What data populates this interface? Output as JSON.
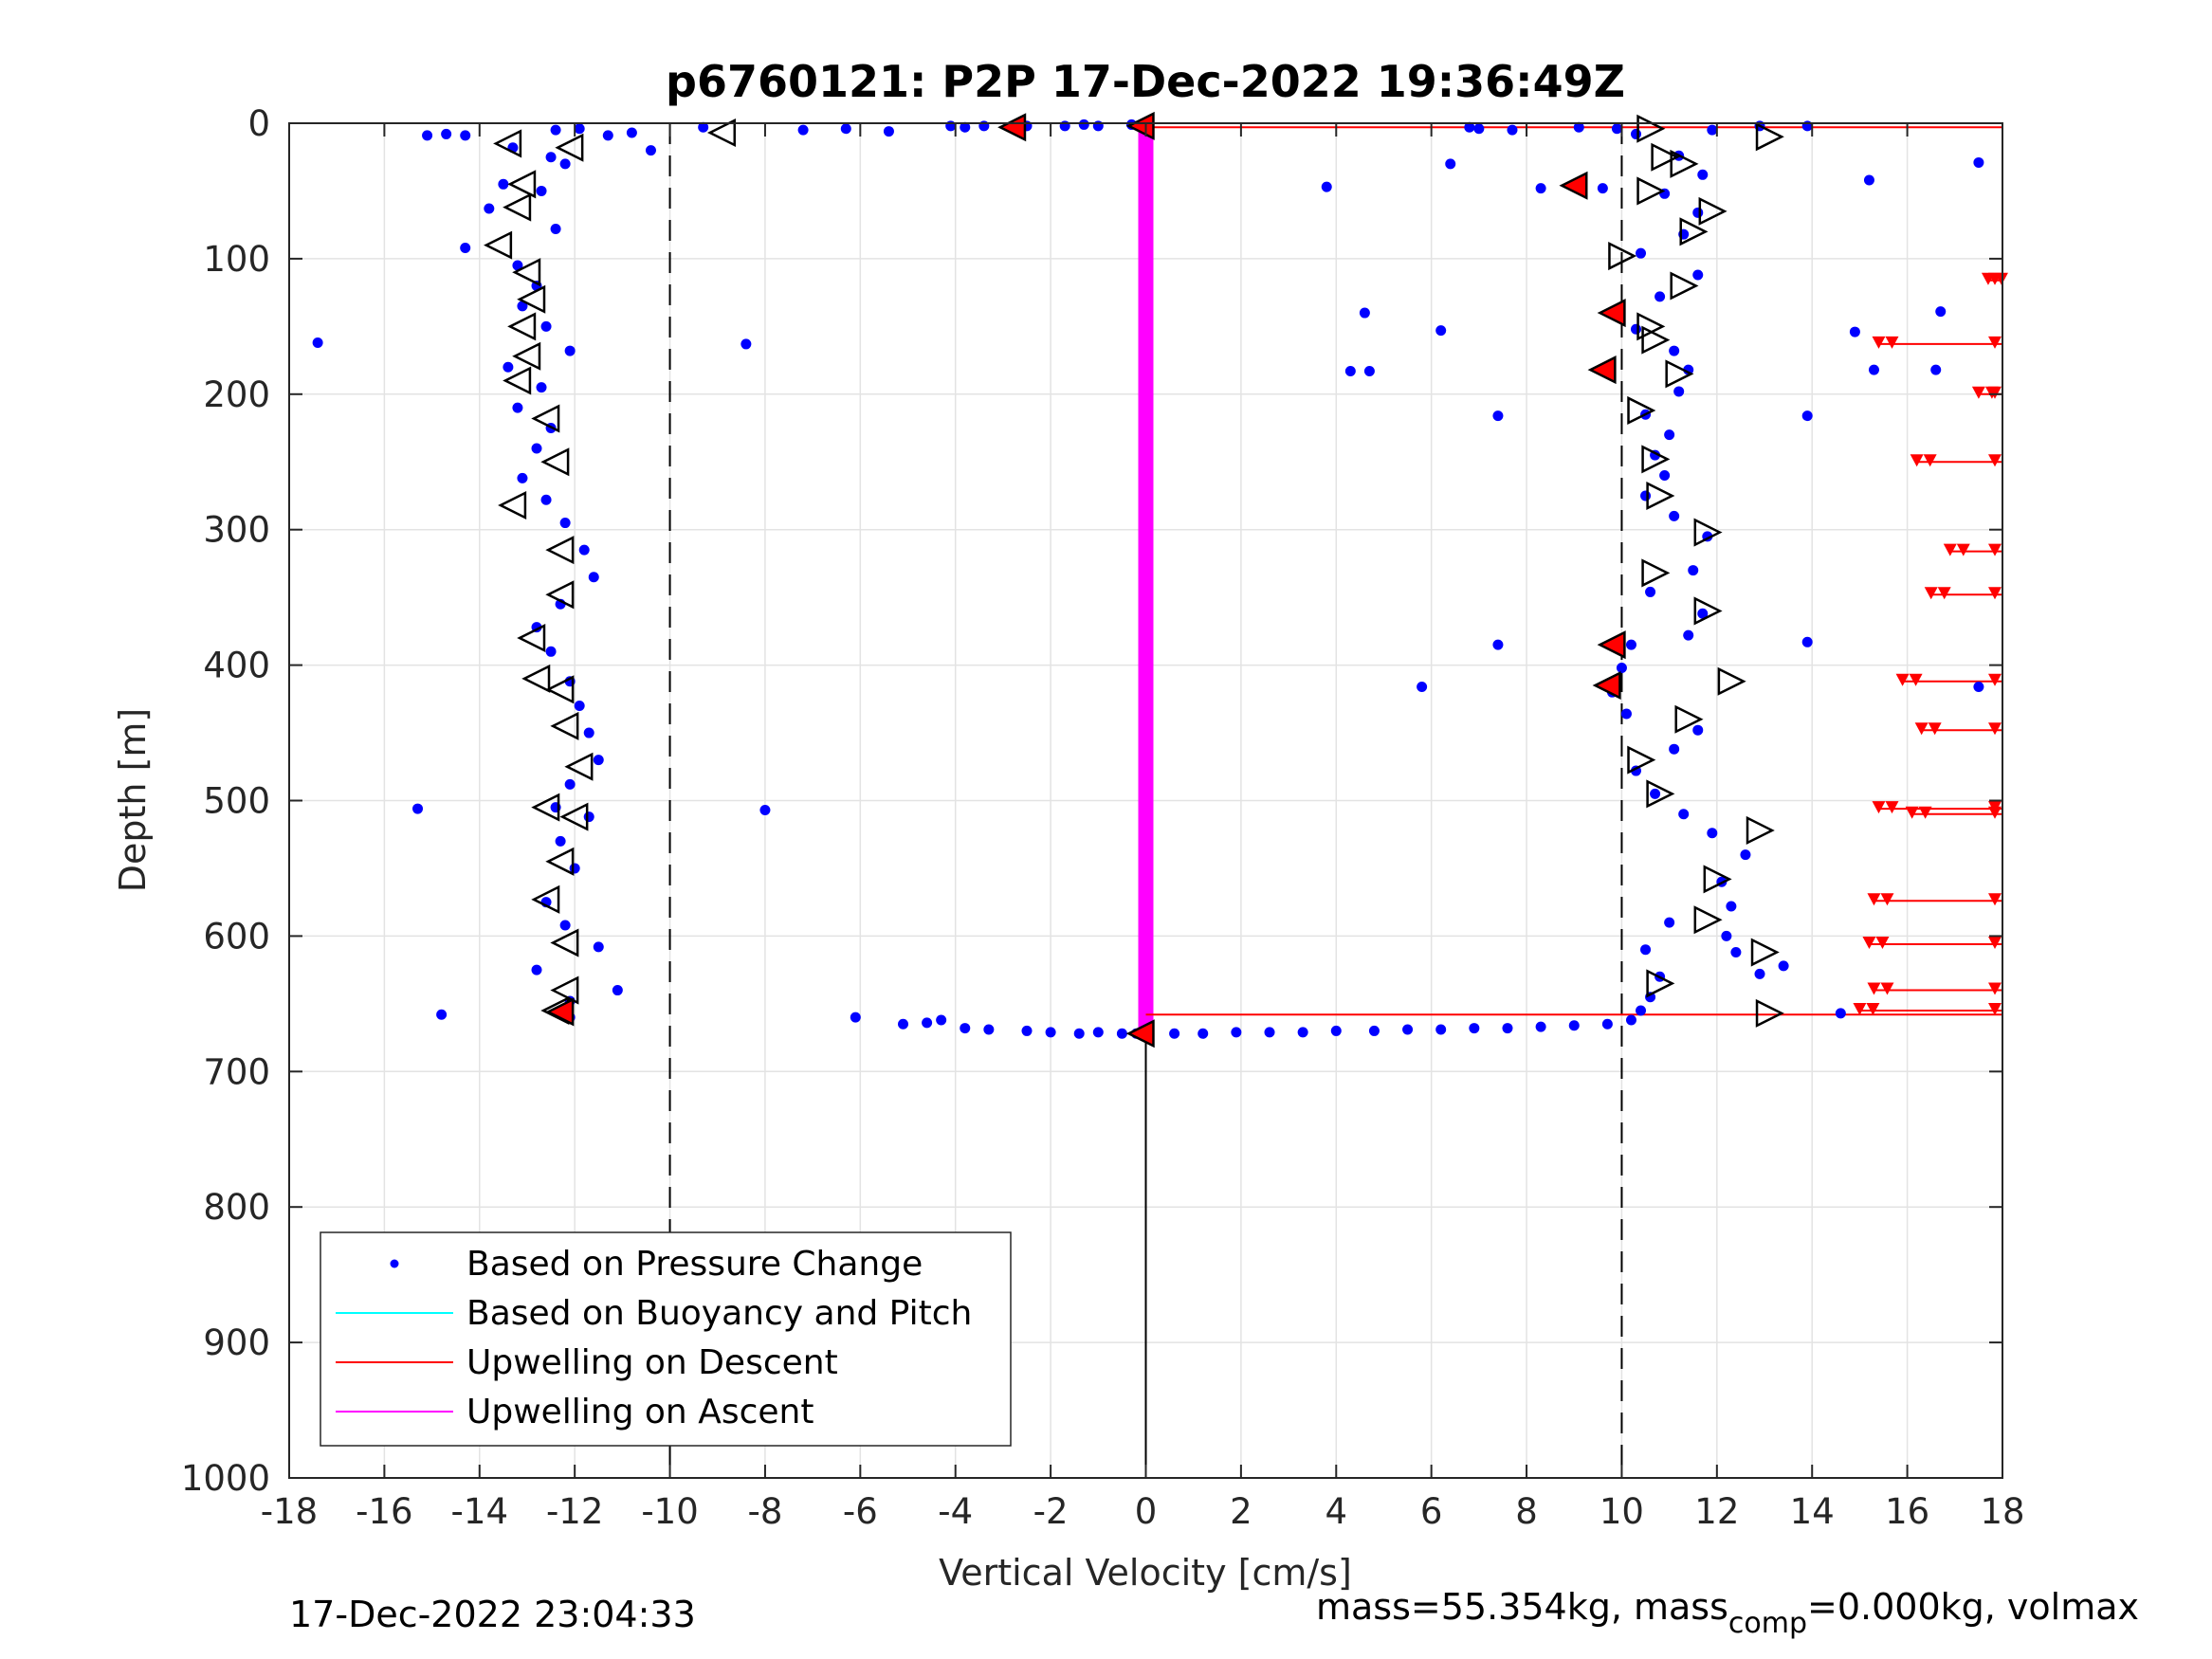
{
  "chart_data": {
    "type": "scatter",
    "title": "p6760121: P2P 17-Dec-2022 19:36:49Z",
    "xlabel": "Vertical Velocity [cm/s]",
    "ylabel": "Depth [m]",
    "xlim": [
      -18,
      18
    ],
    "ylim": [
      0,
      1000
    ],
    "y_reversed": true,
    "grid": true,
    "x_ticks": [
      "-18",
      "-16",
      "-14",
      "-12",
      "-10",
      "-8",
      "-6",
      "-4",
      "-2",
      "0",
      "2",
      "4",
      "6",
      "8",
      "10",
      "12",
      "14",
      "16",
      "18"
    ],
    "y_ticks": [
      "0",
      "100",
      "200",
      "300",
      "400",
      "500",
      "600",
      "700",
      "800",
      "900",
      "1000"
    ],
    "legend_position": "bottom-left",
    "legend": [
      {
        "label": "Based on Pressure Change",
        "color": "#0000ff",
        "marker": "dot"
      },
      {
        "label": "Based on Buoyancy and Pitch",
        "color": "#00ffff",
        "marker": "line"
      },
      {
        "label": "Upwelling on Descent",
        "color": "#ff0000",
        "marker": "line"
      },
      {
        "label": "Upwelling on Ascent",
        "color": "#ff00ff",
        "marker": "line"
      }
    ],
    "reference_lines": {
      "dashed_x": [
        -10,
        10
      ],
      "solid_x": 0,
      "solid_x_from_depth": 670
    },
    "series": [
      {
        "role": "pressure_change_descent",
        "color": "#0000ff",
        "points": [
          [
            -15.1,
            9
          ],
          [
            -14.7,
            8
          ],
          [
            -14.3,
            9
          ],
          [
            -12.4,
            5
          ],
          [
            -11.9,
            4
          ],
          [
            -11.3,
            9
          ],
          [
            -10.8,
            7
          ],
          [
            -10.4,
            20
          ],
          [
            -9.3,
            3
          ],
          [
            -7.2,
            5
          ],
          [
            -6.3,
            4
          ],
          [
            -5.4,
            6
          ],
          [
            -4.1,
            2
          ],
          [
            -3.8,
            3
          ],
          [
            -3.4,
            2
          ],
          [
            -2.5,
            2
          ],
          [
            -1.7,
            2
          ],
          [
            -1.3,
            1
          ],
          [
            -1.0,
            2
          ],
          [
            -0.3,
            1
          ],
          [
            -13.3,
            18
          ],
          [
            -12.5,
            25
          ],
          [
            -12.2,
            30
          ],
          [
            -13.5,
            45
          ],
          [
            -12.7,
            50
          ],
          [
            -13.8,
            63
          ],
          [
            -12.4,
            78
          ],
          [
            -14.3,
            92
          ],
          [
            -13.2,
            105
          ],
          [
            -12.8,
            120
          ],
          [
            -13.1,
            135
          ],
          [
            -12.6,
            150
          ],
          [
            -12.1,
            168
          ],
          [
            -13.4,
            180
          ],
          [
            -12.7,
            195
          ],
          [
            -13.2,
            210
          ],
          [
            -12.5,
            225
          ],
          [
            -12.8,
            240
          ],
          [
            -13.1,
            262
          ],
          [
            -12.6,
            278
          ],
          [
            -12.2,
            295
          ],
          [
            -11.8,
            315
          ],
          [
            -11.6,
            335
          ],
          [
            -12.3,
            355
          ],
          [
            -12.8,
            372
          ],
          [
            -12.5,
            390
          ],
          [
            -12.1,
            412
          ],
          [
            -11.9,
            430
          ],
          [
            -11.7,
            450
          ],
          [
            -11.5,
            470
          ],
          [
            -12.1,
            488
          ],
          [
            -12.4,
            505
          ],
          [
            -11.7,
            512
          ],
          [
            -12.3,
            530
          ],
          [
            -12.0,
            550
          ],
          [
            -12.6,
            575
          ],
          [
            -12.2,
            592
          ],
          [
            -11.5,
            608
          ],
          [
            -12.8,
            625
          ],
          [
            -11.1,
            640
          ],
          [
            -12.1,
            648
          ],
          [
            -14.8,
            658
          ],
          [
            -12.1,
            660
          ],
          [
            -17.4,
            162
          ],
          [
            -15.3,
            506
          ],
          [
            -8.4,
            163
          ],
          [
            -8.0,
            507
          ],
          [
            -6.1,
            660
          ],
          [
            -5.1,
            665
          ],
          [
            -4.6,
            664
          ],
          [
            -4.3,
            662
          ],
          [
            -3.8,
            668
          ],
          [
            -3.3,
            669
          ],
          [
            -2.5,
            670
          ],
          [
            -2.0,
            671
          ],
          [
            -1.4,
            672
          ],
          [
            -1.0,
            671
          ],
          [
            -0.5,
            672
          ],
          [
            -0.2,
            672
          ]
        ]
      },
      {
        "role": "pressure_change_ascent",
        "color": "#0000ff",
        "points": [
          [
            0.6,
            672
          ],
          [
            1.2,
            672
          ],
          [
            1.9,
            671
          ],
          [
            2.6,
            671
          ],
          [
            3.3,
            671
          ],
          [
            4.0,
            670
          ],
          [
            4.8,
            670
          ],
          [
            5.5,
            669
          ],
          [
            6.2,
            669
          ],
          [
            6.9,
            668
          ],
          [
            7.6,
            668
          ],
          [
            8.3,
            667
          ],
          [
            9.0,
            666
          ],
          [
            9.7,
            665
          ],
          [
            10.2,
            662
          ],
          [
            10.4,
            655
          ],
          [
            10.6,
            645
          ],
          [
            10.8,
            630
          ],
          [
            10.5,
            610
          ],
          [
            11.0,
            590
          ],
          [
            12.4,
            612
          ],
          [
            13.4,
            622
          ],
          [
            12.9,
            628
          ],
          [
            12.2,
            600
          ],
          [
            12.3,
            578
          ],
          [
            12.1,
            560
          ],
          [
            12.6,
            540
          ],
          [
            11.9,
            524
          ],
          [
            11.3,
            510
          ],
          [
            10.7,
            495
          ],
          [
            10.3,
            478
          ],
          [
            11.1,
            462
          ],
          [
            11.6,
            448
          ],
          [
            10.1,
            436
          ],
          [
            9.8,
            420
          ],
          [
            10.0,
            402
          ],
          [
            10.2,
            385
          ],
          [
            11.4,
            378
          ],
          [
            11.7,
            362
          ],
          [
            10.6,
            346
          ],
          [
            11.5,
            330
          ],
          [
            11.8,
            305
          ],
          [
            11.1,
            290
          ],
          [
            10.5,
            275
          ],
          [
            10.9,
            260
          ],
          [
            10.7,
            245
          ],
          [
            11.0,
            230
          ],
          [
            10.5,
            215
          ],
          [
            11.2,
            198
          ],
          [
            11.4,
            182
          ],
          [
            11.1,
            168
          ],
          [
            10.3,
            152
          ],
          [
            9.9,
            140
          ],
          [
            10.8,
            128
          ],
          [
            11.6,
            112
          ],
          [
            10.4,
            96
          ],
          [
            11.3,
            82
          ],
          [
            11.6,
            66
          ],
          [
            10.9,
            52
          ],
          [
            11.7,
            38
          ],
          [
            11.2,
            24
          ],
          [
            10.3,
            8
          ],
          [
            11.9,
            5
          ],
          [
            12.9,
            2
          ],
          [
            13.9,
            2
          ],
          [
            9.6,
            48
          ],
          [
            9.0,
            46
          ],
          [
            8.3,
            48
          ],
          [
            9.9,
            4
          ],
          [
            9.1,
            3
          ],
          [
            7.7,
            5
          ],
          [
            7.0,
            4
          ],
          [
            6.8,
            3
          ],
          [
            6.4,
            30
          ],
          [
            3.8,
            47
          ],
          [
            4.6,
            140
          ],
          [
            4.3,
            183
          ],
          [
            4.7,
            183
          ],
          [
            6.2,
            153
          ],
          [
            7.4,
            216
          ],
          [
            7.4,
            385
          ],
          [
            5.8,
            416
          ],
          [
            14.9,
            154
          ],
          [
            15.3,
            182
          ],
          [
            15.2,
            42
          ],
          [
            16.7,
            139
          ],
          [
            16.6,
            182
          ],
          [
            17.5,
            29
          ],
          [
            13.9,
            216
          ],
          [
            13.9,
            383
          ],
          [
            14.6,
            657
          ],
          [
            17.5,
            416
          ]
        ]
      },
      {
        "role": "triangle_markers_descent",
        "color": "#000000",
        "points": [
          [
            -13.4,
            15
          ],
          [
            -12.1,
            18
          ],
          [
            -13.1,
            45
          ],
          [
            -13.2,
            62
          ],
          [
            -13.6,
            90
          ],
          [
            -13.0,
            110
          ],
          [
            -12.9,
            130
          ],
          [
            -13.1,
            150
          ],
          [
            -13.0,
            172
          ],
          [
            -13.2,
            190
          ],
          [
            -12.6,
            218
          ],
          [
            -12.4,
            250
          ],
          [
            -13.3,
            282
          ],
          [
            -12.3,
            315
          ],
          [
            -12.3,
            348
          ],
          [
            -12.9,
            380
          ],
          [
            -12.8,
            410
          ],
          [
            -12.3,
            418
          ],
          [
            -12.2,
            445
          ],
          [
            -11.9,
            475
          ],
          [
            -12.6,
            505
          ],
          [
            -12.0,
            512
          ],
          [
            -12.3,
            545
          ],
          [
            -12.6,
            573
          ],
          [
            -12.2,
            605
          ],
          [
            -12.2,
            640
          ],
          [
            -12.4,
            655
          ],
          [
            -8.9,
            7
          ]
        ]
      },
      {
        "role": "triangle_markers_ascent",
        "color": "#000000",
        "points": [
          [
            10.6,
            4
          ],
          [
            13.1,
            10
          ],
          [
            10.9,
            25
          ],
          [
            11.3,
            30
          ],
          [
            10.6,
            50
          ],
          [
            11.9,
            65
          ],
          [
            11.5,
            80
          ],
          [
            10.0,
            98
          ],
          [
            11.3,
            120
          ],
          [
            10.6,
            150
          ],
          [
            10.7,
            160
          ],
          [
            11.2,
            185
          ],
          [
            10.4,
            212
          ],
          [
            10.7,
            248
          ],
          [
            10.8,
            275
          ],
          [
            11.8,
            302
          ],
          [
            10.7,
            332
          ],
          [
            11.8,
            360
          ],
          [
            12.3,
            412
          ],
          [
            11.4,
            440
          ],
          [
            10.4,
            470
          ],
          [
            10.8,
            495
          ],
          [
            12.9,
            522
          ],
          [
            12.0,
            558
          ],
          [
            11.8,
            588
          ],
          [
            13.0,
            612
          ],
          [
            10.8,
            635
          ],
          [
            13.1,
            657
          ]
        ]
      },
      {
        "role": "red_filled_markers",
        "color": "#ff0000",
        "points": [
          [
            -2.8,
            3
          ],
          [
            -0.1,
            2
          ],
          [
            9.0,
            46
          ],
          [
            9.8,
            140
          ],
          [
            9.6,
            182
          ],
          [
            9.8,
            385
          ],
          [
            9.7,
            415
          ],
          [
            -12.3,
            656
          ],
          [
            -0.1,
            672
          ]
        ]
      },
      {
        "role": "upwelling_on_descent",
        "color": "#ff0000",
        "depths": [
          116,
          163,
          200,
          250,
          316,
          348,
          412,
          448,
          506,
          510,
          574,
          606,
          640,
          655
        ],
        "start_x": [
          17.7,
          15.4,
          17.5,
          16.2,
          16.9,
          16.5,
          15.9,
          16.3,
          15.4,
          16.1,
          15.3,
          15.2,
          15.3,
          15.0
        ]
      },
      {
        "role": "upwelling_on_ascent",
        "color": "#ff00ff",
        "x": 0,
        "depth_range": [
          2,
          670
        ]
      }
    ]
  },
  "footer": {
    "timestamp": "17-Dec-2022 23:04:33",
    "mass_text": "mass=55.354kg, mass",
    "mass_sub": "comp",
    "mass_rest": "=0.000kg, volmax"
  }
}
